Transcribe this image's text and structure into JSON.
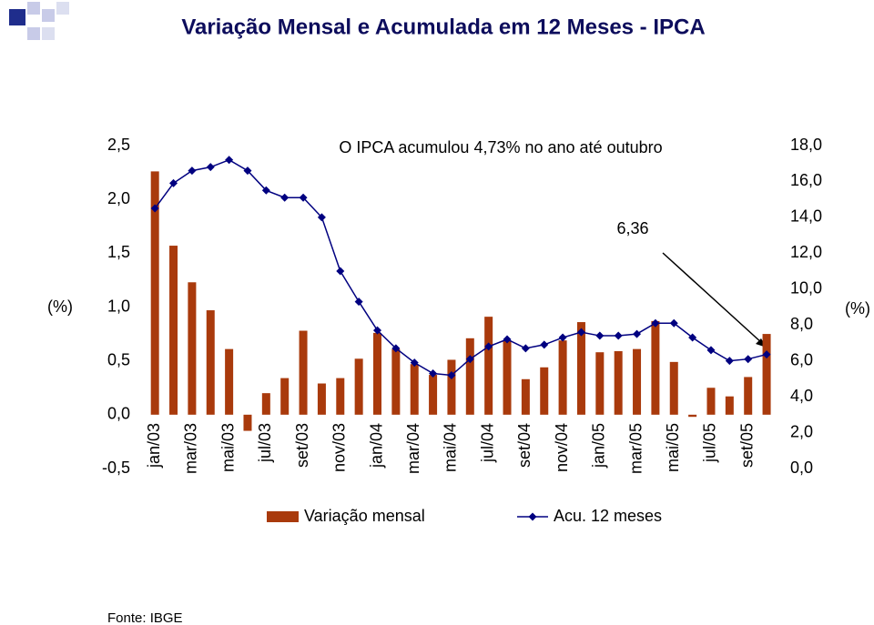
{
  "chart_data": {
    "type": "bar",
    "title": "Variação Mensal e Acumulada em 12 Meses  -  IPCA",
    "ylabel": "(%)",
    "y2label": "(%)",
    "annotations": [
      "O IPCA acumulou 4,73% no ano até outubro",
      "6,36"
    ],
    "source": "Fonte: IBGE",
    "categories": [
      "jan/03",
      null,
      "mar/03",
      null,
      "mai/03",
      null,
      "jul/03",
      null,
      "set/03",
      null,
      "nov/03",
      null,
      "jan/04",
      null,
      "mar/04",
      null,
      "mai/04",
      null,
      "jul/04",
      null,
      "set/04",
      null,
      "nov/04",
      null,
      "jan/05",
      null,
      "mar/05",
      null,
      "mai/05",
      null,
      "jul/05",
      null,
      "set/05",
      null
    ],
    "series": [
      {
        "name": "Variação mensal",
        "type": "bar",
        "color": "#a93a0c",
        "values": [
          2.26,
          1.57,
          1.23,
          0.97,
          0.61,
          -0.15,
          0.2,
          0.34,
          0.78,
          0.29,
          0.34,
          0.52,
          0.76,
          0.61,
          0.47,
          0.37,
          0.51,
          0.71,
          0.91,
          0.69,
          0.33,
          0.44,
          0.69,
          0.86,
          0.58,
          0.59,
          0.61,
          0.87,
          0.49,
          -0.02,
          0.25,
          0.17,
          0.35,
          0.75
        ]
      },
      {
        "name": "Acu. 12 meses",
        "type": "line",
        "axis": "y2",
        "color": "#000080",
        "values": [
          14.5,
          15.9,
          16.6,
          16.8,
          17.2,
          16.6,
          15.5,
          15.1,
          15.1,
          14.0,
          11.0,
          9.3,
          7.7,
          6.7,
          5.9,
          5.3,
          5.2,
          6.1,
          6.8,
          7.2,
          6.7,
          6.9,
          7.3,
          7.6,
          7.4,
          7.4,
          7.5,
          8.1,
          8.1,
          7.3,
          6.6,
          6.0,
          6.1,
          6.36
        ]
      }
    ],
    "ylim": [
      -0.5,
      2.5
    ],
    "yticks": [
      {
        "value": -0.5,
        "label": "-0,5"
      },
      {
        "value": 0,
        "label": "0,0"
      },
      {
        "value": 0.5,
        "label": "0,5"
      },
      {
        "value": 1,
        "label": "1,0"
      },
      {
        "value": 1.5,
        "label": "1,5"
      },
      {
        "value": 2,
        "label": "2,0"
      },
      {
        "value": 2.5,
        "label": "2,5"
      }
    ],
    "y2lim": [
      0,
      18
    ],
    "y2ticks": [
      {
        "value": 0,
        "label": "0,0"
      },
      {
        "value": 2,
        "label": "2,0"
      },
      {
        "value": 4,
        "label": "4,0"
      },
      {
        "value": 6,
        "label": "6,0"
      },
      {
        "value": 8,
        "label": "8,0"
      },
      {
        "value": 10,
        "label": "10,0"
      },
      {
        "value": 12,
        "label": "12,0"
      },
      {
        "value": 14,
        "label": "14,0"
      },
      {
        "value": 16,
        "label": "16,0"
      },
      {
        "value": 18,
        "label": "18,0"
      }
    ],
    "grid": false,
    "legend": "bottom"
  }
}
